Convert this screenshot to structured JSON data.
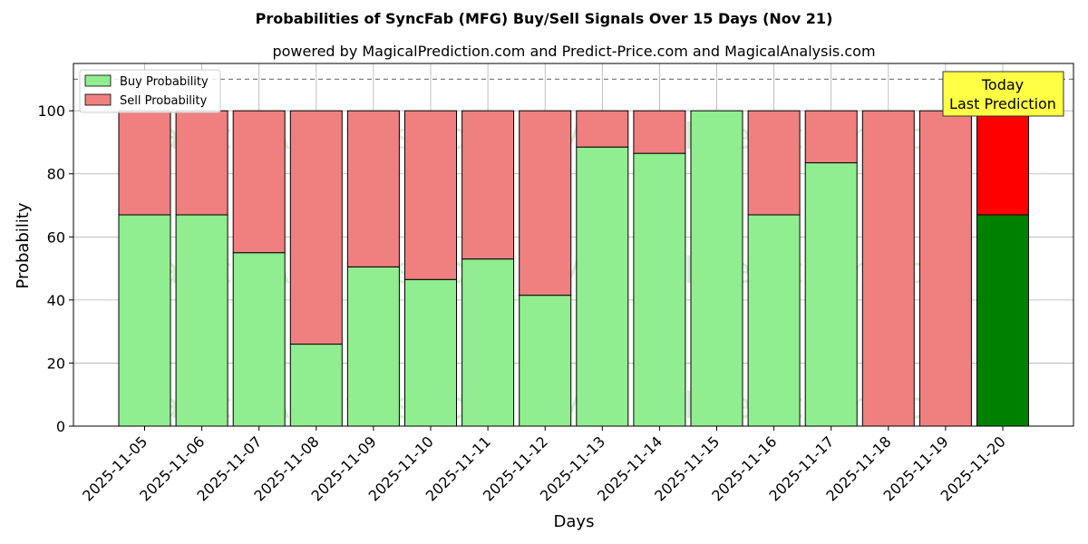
{
  "chart_data": {
    "type": "bar",
    "stacked": true,
    "title": "Probabilities of SyncFab (MFG) Buy/Sell Signals Over 15 Days (Nov 21)",
    "subtitle": "powered by MagicalPrediction.com and Predict-Price.com and MagicalAnalysis.com",
    "xlabel": "Days",
    "ylabel": "Probability",
    "ylim": [
      0,
      115
    ],
    "yticks": [
      0,
      20,
      40,
      60,
      80,
      100
    ],
    "grid": true,
    "legend_position": "top-left",
    "reference_line": 110,
    "categories": [
      "2025-11-05",
      "2025-11-06",
      "2025-11-07",
      "2025-11-08",
      "2025-11-09",
      "2025-11-10",
      "2025-11-11",
      "2025-11-12",
      "2025-11-13",
      "2025-11-14",
      "2025-11-15",
      "2025-11-16",
      "2025-11-17",
      "2025-11-18",
      "2025-11-19",
      "2025-11-20"
    ],
    "series": [
      {
        "name": "Buy Probability",
        "color": "#90ee90",
        "highlight_color": "#008000",
        "values": [
          67,
          67,
          55,
          26,
          50.5,
          46.5,
          53,
          41.5,
          88.5,
          86.5,
          100,
          67,
          83.5,
          0,
          0,
          67
        ]
      },
      {
        "name": "Sell Probability",
        "color": "#f08080",
        "highlight_color": "#ff0000",
        "values": [
          33,
          33,
          45,
          74,
          49.5,
          53.5,
          47,
          58.5,
          11.5,
          13.5,
          0,
          33,
          16.5,
          100,
          100,
          33
        ]
      }
    ],
    "highlight_index": 15,
    "annotation": {
      "lines": [
        "Today",
        "Last Prediction"
      ],
      "color": "#ffff44"
    },
    "watermarks": [
      "MagicalAnalysis.com",
      "MagicalPrediction.com"
    ]
  }
}
